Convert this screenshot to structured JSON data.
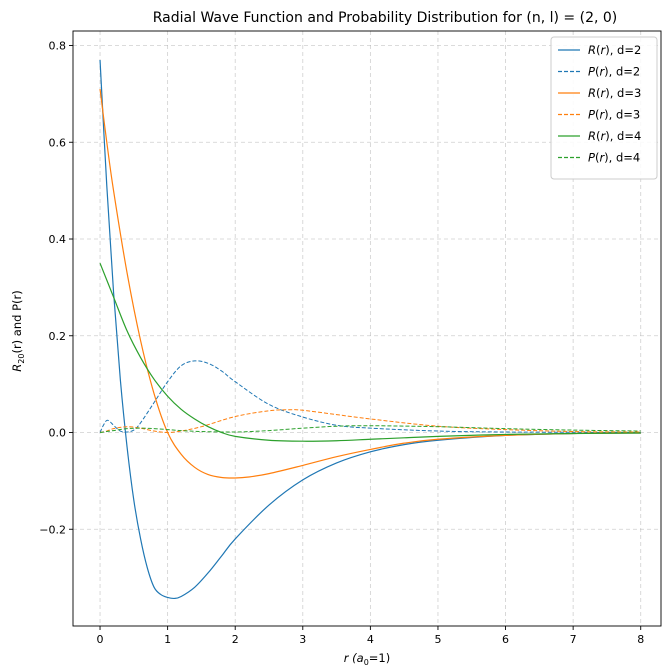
{
  "chart_data": {
    "type": "line",
    "title": "Radial Wave Function and Probability Distribution for (n, l) = (2, 0)",
    "xlabel": {
      "main": "r (a",
      "sub": "0",
      "tail": "=1)"
    },
    "ylabel": {
      "main": "R",
      "sub": "20",
      "tail": "(r) and P(r)"
    },
    "xlim": [
      -0.4,
      8.3
    ],
    "ylim": [
      -0.4,
      0.83
    ],
    "xticks": [
      0,
      1,
      2,
      3,
      4,
      5,
      6,
      7,
      8
    ],
    "xtick_labels": [
      "0",
      "1",
      "2",
      "3",
      "4",
      "5",
      "6",
      "7",
      "8"
    ],
    "yticks": [
      -0.2,
      0.0,
      0.2,
      0.4,
      0.6,
      0.8
    ],
    "ytick_labels": [
      "−0.2",
      "0.0",
      "0.2",
      "0.4",
      "0.6",
      "0.8"
    ],
    "grid": true,
    "legend_position": "top-right",
    "series": [
      {
        "name": "R(r), d=2",
        "legend_prefix": "R",
        "legend_arg": "(r)",
        "legend_suffix": ", d=2",
        "color": "#1f77b4",
        "dash": "solid",
        "x": [
          0,
          0.1,
          0.2,
          0.3,
          0.4,
          0.5,
          0.6,
          0.7,
          0.8,
          0.9,
          1.0,
          1.1,
          1.2,
          1.4,
          1.6,
          1.8,
          2.0,
          2.5,
          3.0,
          3.5,
          4.0,
          4.5,
          5.0,
          6.0,
          7.0,
          8.0
        ],
        "y": [
          0.77,
          0.51,
          0.29,
          0.11,
          -0.03,
          -0.14,
          -0.22,
          -0.28,
          -0.32,
          -0.335,
          -0.341,
          -0.343,
          -0.339,
          -0.32,
          -0.29,
          -0.255,
          -0.22,
          -0.15,
          -0.098,
          -0.063,
          -0.04,
          -0.025,
          -0.016,
          -0.006,
          -0.002,
          -0.001
        ]
      },
      {
        "name": "P(r), d=2",
        "legend_prefix": "P",
        "legend_arg": "(r)",
        "legend_suffix": ", d=2",
        "color": "#1f77b4",
        "dash": "dashed",
        "x": [
          0,
          0.05,
          0.1,
          0.15,
          0.2,
          0.3,
          0.4,
          0.5,
          0.6,
          0.8,
          1.0,
          1.2,
          1.4,
          1.6,
          1.8,
          2.0,
          2.5,
          3.0,
          3.5,
          4.0,
          5.0,
          6.0,
          7.0,
          8.0
        ],
        "y": [
          0.0,
          0.015,
          0.025,
          0.022,
          0.015,
          0.003,
          0.001,
          0.005,
          0.02,
          0.062,
          0.105,
          0.138,
          0.148,
          0.143,
          0.127,
          0.105,
          0.058,
          0.032,
          0.015,
          0.009,
          0.003,
          0.001,
          0.0005,
          0.0
        ]
      },
      {
        "name": "R(r), d=3",
        "legend_prefix": "R",
        "legend_arg": "(r)",
        "legend_suffix": ", d=3",
        "color": "#ff7f0e",
        "dash": "solid",
        "x": [
          0,
          0.1,
          0.2,
          0.4,
          0.6,
          0.8,
          1.0,
          1.2,
          1.4,
          1.6,
          1.8,
          2.0,
          2.2,
          2.5,
          3.0,
          3.5,
          4.0,
          4.5,
          5.0,
          6.0,
          7.0,
          8.0
        ],
        "y": [
          0.71,
          0.6,
          0.5,
          0.33,
          0.19,
          0.08,
          0.0,
          -0.045,
          -0.072,
          -0.087,
          -0.093,
          -0.094,
          -0.092,
          -0.085,
          -0.068,
          -0.05,
          -0.035,
          -0.022,
          -0.014,
          -0.006,
          -0.002,
          -0.001
        ]
      },
      {
        "name": "P(r), d=3",
        "legend_prefix": "P",
        "legend_arg": "(r)",
        "legend_suffix": ", d=3",
        "color": "#ff7f0e",
        "dash": "dashed",
        "x": [
          0,
          0.1,
          0.2,
          0.4,
          0.6,
          0.8,
          1.0,
          1.2,
          1.5,
          2.0,
          2.5,
          2.8,
          3.0,
          3.5,
          4.0,
          5.0,
          6.0,
          7.0,
          8.0
        ],
        "y": [
          0.0,
          0.003,
          0.008,
          0.012,
          0.009,
          0.003,
          0.0,
          0.003,
          0.012,
          0.033,
          0.045,
          0.047,
          0.046,
          0.037,
          0.028,
          0.013,
          0.006,
          0.002,
          0.001
        ]
      },
      {
        "name": "R(r), d=4",
        "legend_prefix": "R",
        "legend_arg": "(r)",
        "legend_suffix": ", d=4",
        "color": "#2ca02c",
        "dash": "solid",
        "x": [
          0,
          0.2,
          0.4,
          0.6,
          0.8,
          1.0,
          1.2,
          1.4,
          1.6,
          1.8,
          2.0,
          2.5,
          3.0,
          3.5,
          4.0,
          4.5,
          5.0,
          6.0,
          7.0,
          8.0
        ],
        "y": [
          0.35,
          0.28,
          0.21,
          0.155,
          0.11,
          0.075,
          0.048,
          0.028,
          0.012,
          0.0,
          -0.008,
          -0.016,
          -0.018,
          -0.017,
          -0.014,
          -0.011,
          -0.008,
          -0.004,
          -0.002,
          -0.001
        ]
      },
      {
        "name": "P(r), d=4",
        "legend_prefix": "P",
        "legend_arg": "(r)",
        "legend_suffix": ", d=4",
        "color": "#2ca02c",
        "dash": "dashed",
        "x": [
          0,
          0.2,
          0.4,
          0.6,
          0.8,
          1.0,
          1.2,
          1.5,
          2.0,
          2.5,
          3.0,
          3.5,
          4.0,
          5.0,
          6.0,
          7.0,
          8.0
        ],
        "y": [
          0.0,
          0.004,
          0.008,
          0.009,
          0.008,
          0.006,
          0.004,
          0.002,
          0.001,
          0.004,
          0.009,
          0.013,
          0.014,
          0.012,
          0.008,
          0.005,
          0.003
        ]
      }
    ]
  }
}
